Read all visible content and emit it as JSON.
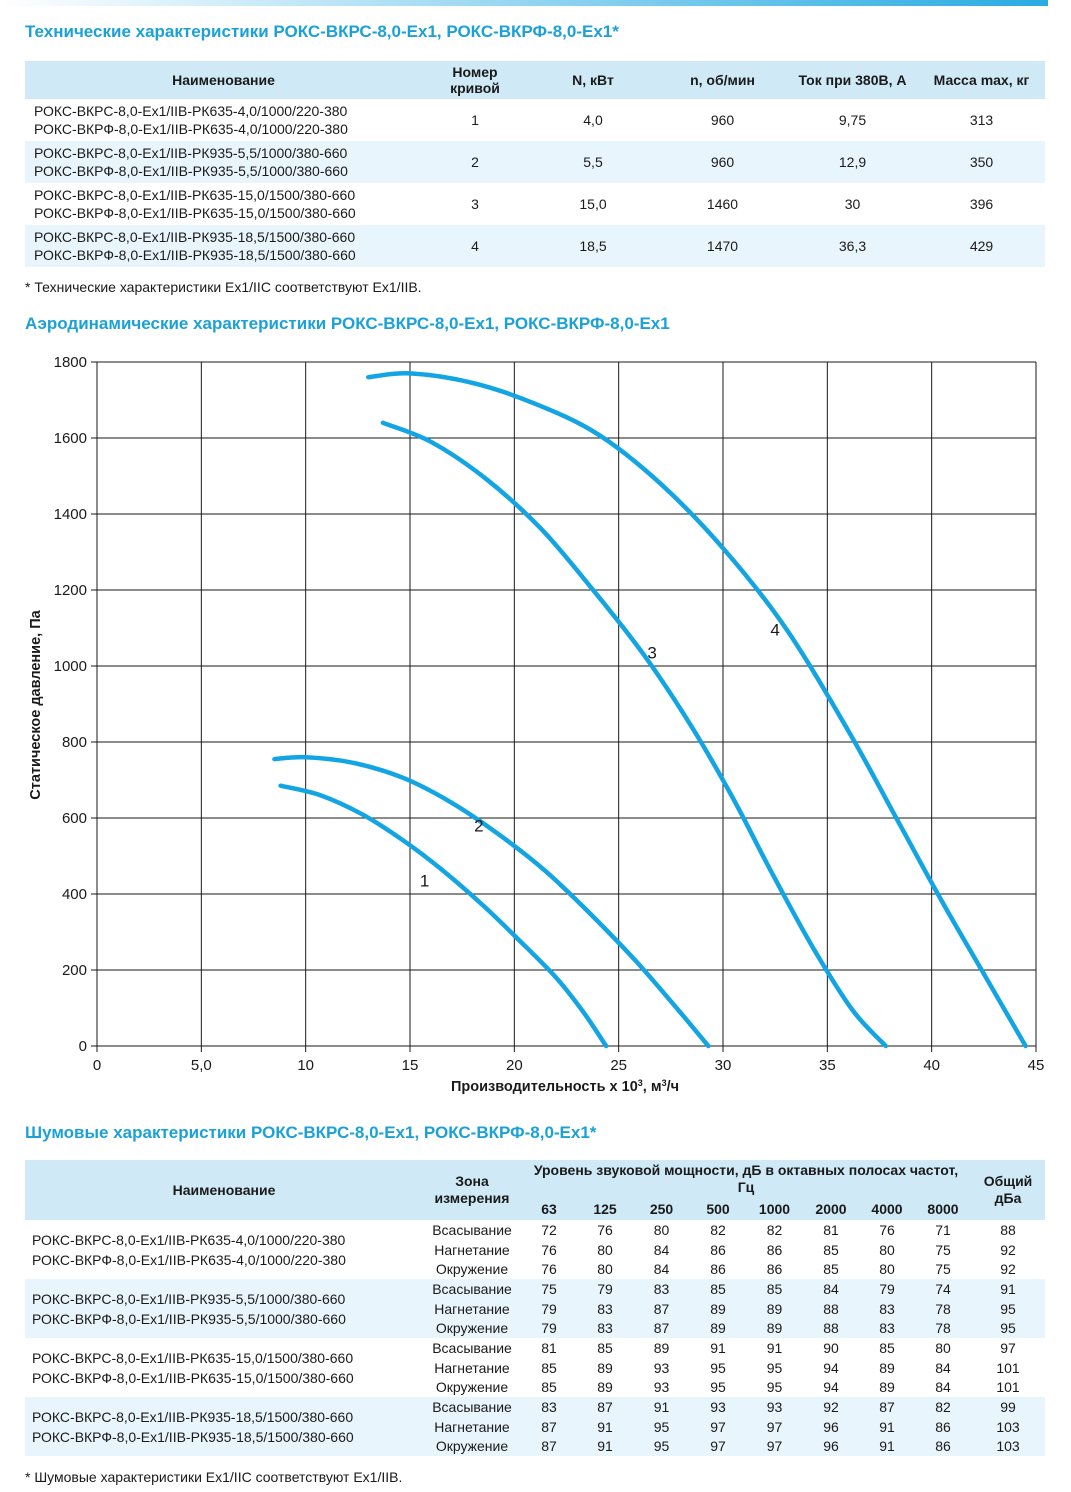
{
  "spec": {
    "title": "Технические характеристики РОКС-ВКРС-8,0-Ex1, РОКС-ВКРФ-8,0-Ex1*",
    "headers": [
      "Наименование",
      "Номер кривой",
      "N, кВт",
      "n, об/мин",
      "Ток при 380В, А",
      "Масса max, кг"
    ],
    "rows": [
      {
        "name1": "РОКС-ВКРС-8,0-Ex1/IIB-РК635-4,0/1000/220-380",
        "name2": "РОКС-ВКРФ-8,0-Ex1/IIB-РК635-4,0/1000/220-380",
        "curve": "1",
        "power": "4,0",
        "rpm": "960",
        "current": "9,75",
        "mass": "313"
      },
      {
        "name1": "РОКС-ВКРС-8,0-Ex1/IIB-РК935-5,5/1000/380-660",
        "name2": "РОКС-ВКРФ-8,0-Ex1/IIB-РК935-5,5/1000/380-660",
        "curve": "2",
        "power": "5,5",
        "rpm": "960",
        "current": "12,9",
        "mass": "350"
      },
      {
        "name1": "РОКС-ВКРС-8,0-Ex1/IIB-РК635-15,0/1500/380-660",
        "name2": "РОКС-ВКРФ-8,0-Ex1/IIB-РК635-15,0/1500/380-660",
        "curve": "3",
        "power": "15,0",
        "rpm": "1460",
        "current": "30",
        "mass": "396"
      },
      {
        "name1": "РОКС-ВКРС-8,0-Ex1/IIB-РК935-18,5/1500/380-660",
        "name2": "РОКС-ВКРФ-8,0-Ex1/IIB-РК935-18,5/1500/380-660",
        "curve": "4",
        "power": "18,5",
        "rpm": "1470",
        "current": "36,3",
        "mass": "429"
      }
    ],
    "note": "* Технические характеристики Ex1/IIC соответствуют Ex1/IIB."
  },
  "aero": {
    "title": "Аэродинамические характеристики РОКС-ВКРС-8,0-Ex1, РОКС-ВКРФ-8,0-Ex1"
  },
  "chart_data": {
    "type": "line",
    "xlabel": "Производительность х 10³, м³/ч",
    "ylabel": "Статическое давление, Па",
    "xlim": [
      0,
      45
    ],
    "ylim": [
      0,
      1800
    ],
    "grid": true,
    "x_ticks": [
      "0",
      "5,0",
      "10",
      "15",
      "20",
      "25",
      "30",
      "35",
      "40",
      "45"
    ],
    "y_ticks": [
      "0",
      "200",
      "400",
      "600",
      "800",
      "1000",
      "1200",
      "1400",
      "1600",
      "1800"
    ],
    "series": [
      {
        "name": "1",
        "label_at": [
          15.7,
          420
        ],
        "points": [
          [
            8.8,
            685
          ],
          [
            10.7,
            660
          ],
          [
            12.7,
            610
          ],
          [
            14.7,
            540
          ],
          [
            16.5,
            465
          ],
          [
            18.5,
            370
          ],
          [
            20.2,
            280
          ],
          [
            22.0,
            180
          ],
          [
            23.3,
            90
          ],
          [
            24.4,
            0
          ]
        ]
      },
      {
        "name": "2",
        "label_at": [
          18.3,
          565
        ],
        "points": [
          [
            8.5,
            755
          ],
          [
            10.0,
            760
          ],
          [
            12.3,
            745
          ],
          [
            14.7,
            705
          ],
          [
            17.0,
            640
          ],
          [
            19.3,
            555
          ],
          [
            21.5,
            460
          ],
          [
            23.6,
            350
          ],
          [
            25.8,
            225
          ],
          [
            27.7,
            105
          ],
          [
            29.3,
            0
          ]
        ]
      },
      {
        "name": "3",
        "label_at": [
          26.6,
          1020
        ],
        "points": [
          [
            13.7,
            1640
          ],
          [
            16.0,
            1590
          ],
          [
            18.7,
            1490
          ],
          [
            21.3,
            1360
          ],
          [
            23.7,
            1205
          ],
          [
            26.2,
            1030
          ],
          [
            28.5,
            840
          ],
          [
            30.5,
            650
          ],
          [
            32.3,
            460
          ],
          [
            34.3,
            260
          ],
          [
            36.2,
            95
          ],
          [
            37.8,
            0
          ]
        ]
      },
      {
        "name": "4",
        "label_at": [
          32.5,
          1080
        ],
        "points": [
          [
            13.0,
            1760
          ],
          [
            15.0,
            1770
          ],
          [
            18.0,
            1745
          ],
          [
            21.0,
            1690
          ],
          [
            24.0,
            1610
          ],
          [
            27.0,
            1480
          ],
          [
            30.0,
            1310
          ],
          [
            33.0,
            1100
          ],
          [
            36.0,
            830
          ],
          [
            38.5,
            580
          ],
          [
            40.5,
            380
          ],
          [
            42.5,
            190
          ],
          [
            44.5,
            0
          ]
        ]
      }
    ]
  },
  "noise": {
    "title": "Шумовые характеристики РОКС-ВКРС-8,0-Ex1, РОКС-ВКРФ-8,0-Ex1*",
    "h_name": "Наименование",
    "h_zone": "Зона измерения",
    "h_level": "Уровень звуковой мощности, дБ в октавных полосах частот, Гц",
    "h_total": "Общий дБа",
    "freqs": [
      "63",
      "125",
      "250",
      "500",
      "1000",
      "2000",
      "4000",
      "8000"
    ],
    "zones": [
      "Всасывание",
      "Нагнетание",
      "Окружение"
    ],
    "groups": [
      {
        "name1": "РОКС-ВКРС-8,0-Ex1/IIB-РК635-4,0/1000/220-380",
        "name2": "РОКС-ВКРФ-8,0-Ex1/IIB-РК635-4,0/1000/220-380",
        "rows": [
          [
            "72",
            "76",
            "80",
            "82",
            "82",
            "81",
            "76",
            "71",
            "88"
          ],
          [
            "76",
            "80",
            "84",
            "86",
            "86",
            "85",
            "80",
            "75",
            "92"
          ],
          [
            "76",
            "80",
            "84",
            "86",
            "86",
            "85",
            "80",
            "75",
            "92"
          ]
        ]
      },
      {
        "name1": "РОКС-ВКРС-8,0-Ex1/IIB-РК935-5,5/1000/380-660",
        "name2": "РОКС-ВКРФ-8,0-Ex1/IIB-РК935-5,5/1000/380-660",
        "rows": [
          [
            "75",
            "79",
            "83",
            "85",
            "85",
            "84",
            "79",
            "74",
            "91"
          ],
          [
            "79",
            "83",
            "87",
            "89",
            "89",
            "88",
            "83",
            "78",
            "95"
          ],
          [
            "79",
            "83",
            "87",
            "89",
            "89",
            "88",
            "83",
            "78",
            "95"
          ]
        ]
      },
      {
        "name1": "РОКС-ВКРС-8,0-Ex1/IIB-РК635-15,0/1500/380-660",
        "name2": "РОКС-ВКРФ-8,0-Ex1/IIB-РК635-15,0/1500/380-660",
        "rows": [
          [
            "81",
            "85",
            "89",
            "91",
            "91",
            "90",
            "85",
            "80",
            "97"
          ],
          [
            "85",
            "89",
            "93",
            "95",
            "95",
            "94",
            "89",
            "84",
            "101"
          ],
          [
            "85",
            "89",
            "93",
            "95",
            "95",
            "94",
            "89",
            "84",
            "101"
          ]
        ]
      },
      {
        "name1": "РОКС-ВКРС-8,0-Ex1/IIB-РК935-18,5/1500/380-660",
        "name2": "РОКС-ВКРФ-8,0-Ex1/IIB-РК935-18,5/1500/380-660",
        "rows": [
          [
            "83",
            "87",
            "91",
            "93",
            "93",
            "92",
            "87",
            "82",
            "99"
          ],
          [
            "87",
            "91",
            "95",
            "97",
            "97",
            "96",
            "91",
            "86",
            "103"
          ],
          [
            "87",
            "91",
            "95",
            "97",
            "97",
            "96",
            "91",
            "86",
            "103"
          ]
        ]
      }
    ],
    "note": "* Шумовые характеристики Ex1/IIC соответствуют Ex1/IIB."
  },
  "colors": {
    "accent": "#1ba1d8",
    "curve": "#13a5e3",
    "header_bg": "#cfe9f7",
    "alt_bg": "#e9f5fc"
  }
}
